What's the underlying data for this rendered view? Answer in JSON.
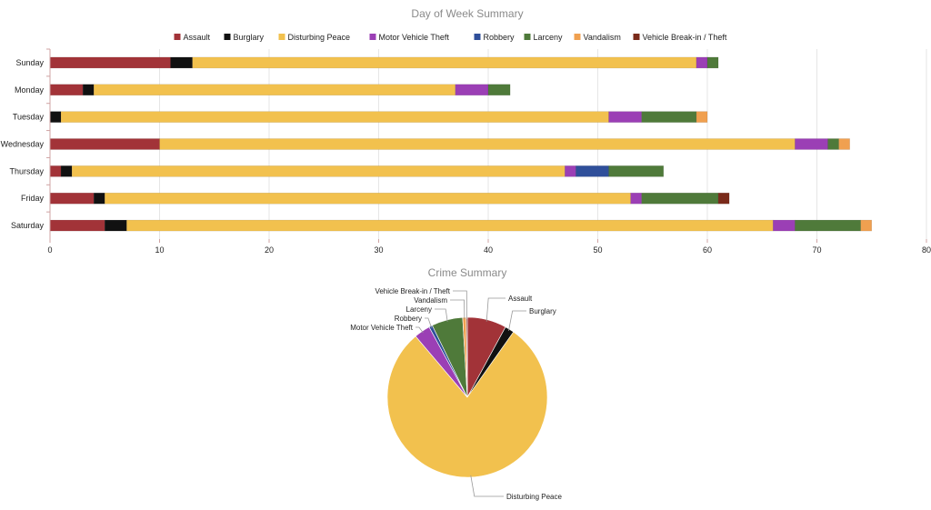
{
  "categories": [
    {
      "name": "Assault",
      "color": "#a23338"
    },
    {
      "name": "Burglary",
      "color": "#111111"
    },
    {
      "name": "Disturbing Peace",
      "color": "#f2c14e"
    },
    {
      "name": "Motor Vehicle Theft",
      "color": "#9b3fb5"
    },
    {
      "name": "Robbery",
      "color": "#2f4f9a"
    },
    {
      "name": "Larceny",
      "color": "#4f7a3a"
    },
    {
      "name": "Vandalism",
      "color": "#f0a050"
    },
    {
      "name": "Vehicle Break-in / Theft",
      "color": "#7a2a1a"
    }
  ],
  "chart_data": [
    {
      "type": "bar",
      "orientation": "horizontal",
      "stacked": true,
      "title": "Day of Week Summary",
      "legend": "top",
      "grid": true,
      "xlim": [
        0,
        80
      ],
      "xticks": [
        "0",
        "10",
        "20",
        "30",
        "40",
        "50",
        "60",
        "70",
        "80"
      ],
      "categories": [
        "Sunday",
        "Monday",
        "Tuesday",
        "Wednesday",
        "Thursday",
        "Friday",
        "Saturday"
      ],
      "series": [
        {
          "name": "Assault",
          "values": [
            11,
            3,
            0,
            10,
            1,
            4,
            5
          ]
        },
        {
          "name": "Burglary",
          "values": [
            2,
            1,
            1,
            0,
            1,
            1,
            2
          ]
        },
        {
          "name": "Disturbing Peace",
          "values": [
            46,
            33,
            50,
            58,
            45,
            48,
            59
          ]
        },
        {
          "name": "Motor Vehicle Theft",
          "values": [
            1,
            3,
            3,
            3,
            1,
            1,
            2
          ]
        },
        {
          "name": "Robbery",
          "values": [
            0,
            0,
            0,
            0,
            3,
            0,
            0
          ]
        },
        {
          "name": "Larceny",
          "values": [
            1,
            2,
            5,
            1,
            5,
            7,
            6
          ]
        },
        {
          "name": "Vandalism",
          "values": [
            0,
            0,
            1,
            1,
            0,
            0,
            1
          ]
        },
        {
          "name": "Vehicle Break-in / Theft",
          "values": [
            0,
            0,
            0,
            0,
            0,
            1,
            0
          ]
        }
      ]
    },
    {
      "type": "pie",
      "title": "Crime Summary",
      "labels": [
        "Assault",
        "Burglary",
        "Disturbing Peace",
        "Motor Vehicle Theft",
        "Robbery",
        "Larceny",
        "Vandalism",
        "Vehicle Break-in / Theft"
      ],
      "values": [
        34,
        8,
        339,
        14,
        3,
        27,
        3,
        1
      ]
    }
  ]
}
